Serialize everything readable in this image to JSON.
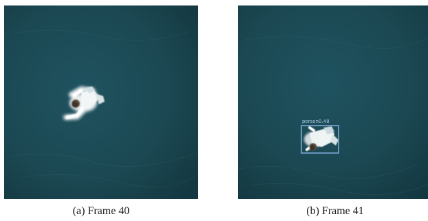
{
  "figure": {
    "panels": [
      {
        "caption": "(a) Frame 40",
        "detections": []
      },
      {
        "caption": "(b) Frame 41",
        "detections": [
          {
            "class_label": "person",
            "confidence": "0.48",
            "box_color": "#7fa6d6"
          }
        ]
      }
    ]
  },
  "colors": {
    "water": "#1d4a55",
    "water_dark": "#163c46",
    "figure_white": "#eef3f4"
  }
}
